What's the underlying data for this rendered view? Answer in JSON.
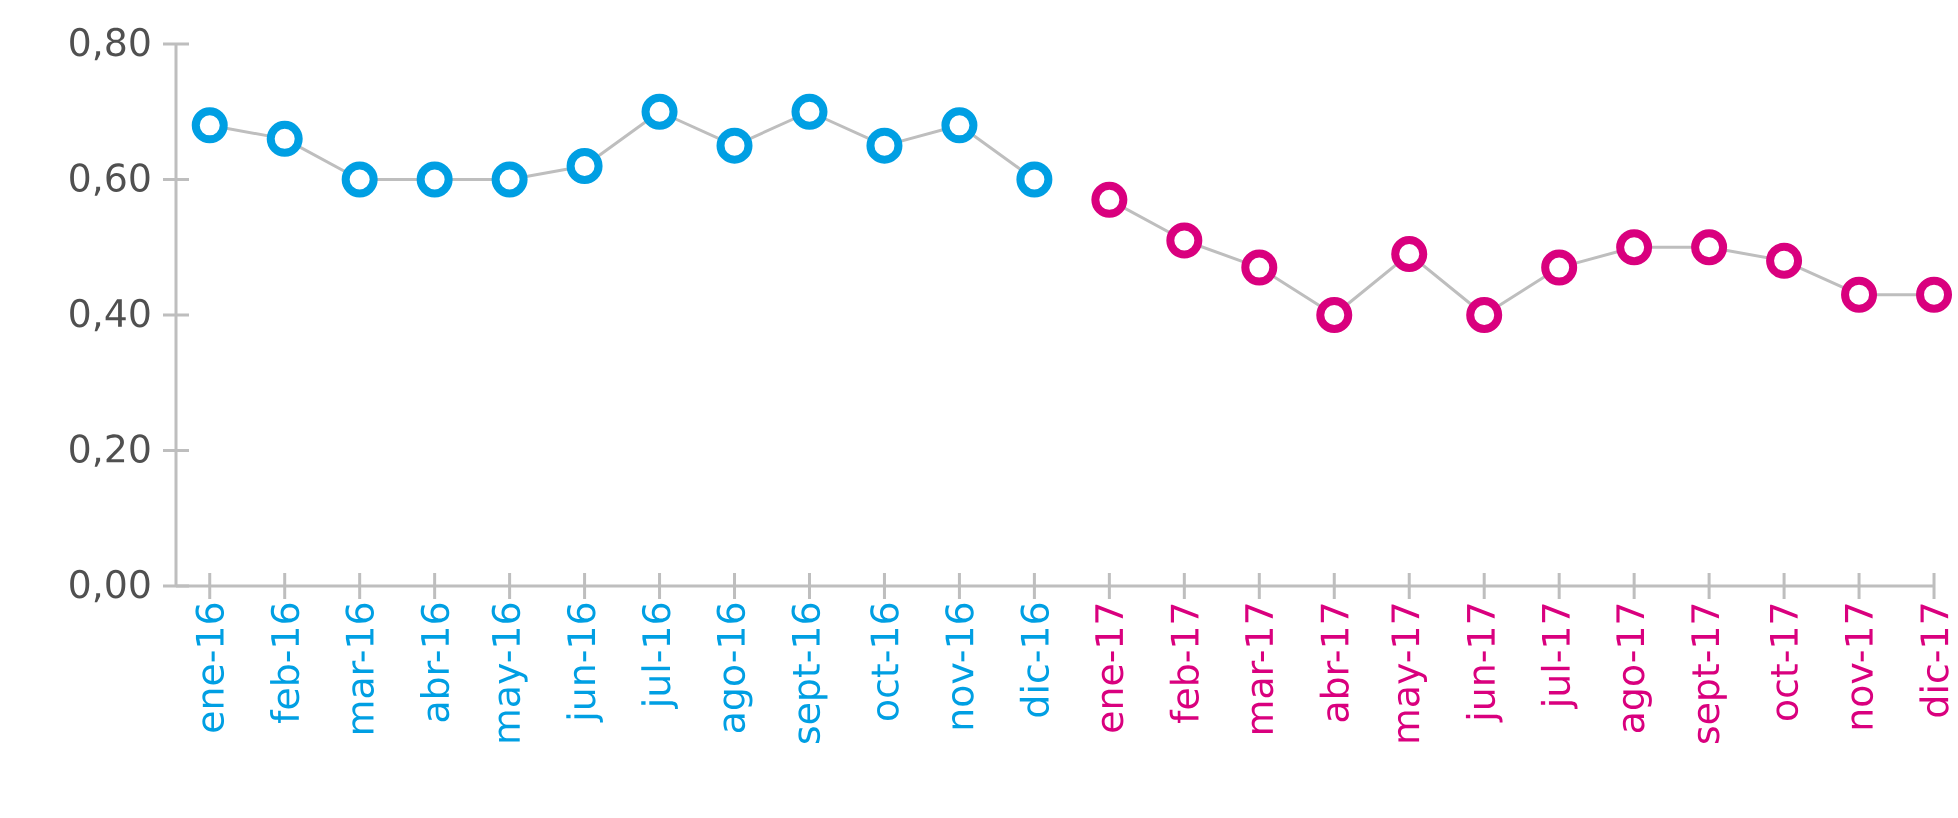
{
  "chart_data": {
    "type": "line",
    "categories": [
      "ene-16",
      "feb-16",
      "mar-16",
      "abr-16",
      "may-16",
      "jun-16",
      "jul-16",
      "ago-16",
      "sept-16",
      "oct-16",
      "nov-16",
      "dic-16",
      "ene-17",
      "feb-17",
      "mar-17",
      "abr-17",
      "may-17",
      "jun-17",
      "jul-17",
      "ago-17",
      "sept-17",
      "oct-17",
      "nov-17",
      "dic-17"
    ],
    "series": [
      {
        "color": "#009fe3",
        "values": [
          0.68,
          0.66,
          0.6,
          0.6,
          0.6,
          0.62,
          0.7,
          0.65,
          0.7,
          0.65,
          0.68,
          0.6,
          null,
          null,
          null,
          null,
          null,
          null,
          null,
          null,
          null,
          null,
          null,
          null
        ]
      },
      {
        "color": "#d9007e",
        "values": [
          null,
          null,
          null,
          null,
          null,
          null,
          null,
          null,
          null,
          null,
          null,
          null,
          0.57,
          0.51,
          0.47,
          0.4,
          0.49,
          0.4,
          0.47,
          0.5,
          0.5,
          0.48,
          0.43,
          0.43
        ]
      }
    ],
    "ylim": [
      0,
      0.8
    ],
    "yticks": [
      {
        "value": 0,
        "label": "0,00"
      },
      {
        "value": 0.2,
        "label": "0,20"
      },
      {
        "value": 0.4,
        "label": "0,40"
      },
      {
        "value": 0.6,
        "label": "0,60"
      },
      {
        "value": 0.8,
        "label": "0,80"
      }
    ],
    "marker": "circle",
    "line_style": "solid"
  }
}
